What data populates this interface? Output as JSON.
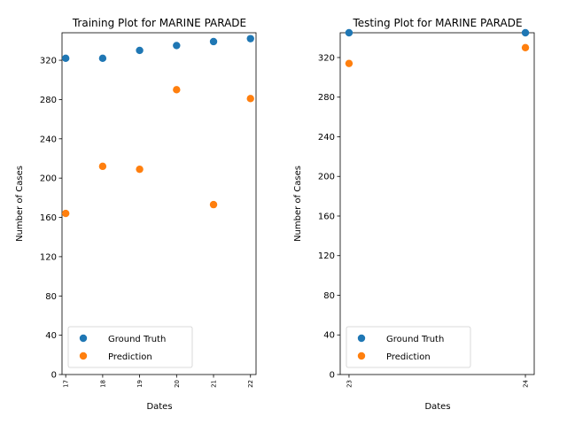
{
  "chart_data": [
    {
      "type": "scatter",
      "title": "Training Plot for MARINE PARADE",
      "xlabel": "Dates",
      "ylabel": "Number of Cases",
      "x": [
        "17",
        "18",
        "19",
        "20",
        "21",
        "22"
      ],
      "xlim": [
        16.9,
        22.15
      ],
      "ylim": [
        0,
        348
      ],
      "yticks": [
        0,
        40,
        80,
        120,
        160,
        200,
        240,
        280,
        320
      ],
      "grid": false,
      "legend": "lower-left",
      "series": [
        {
          "name": "Ground Truth",
          "color": "#1f77b4",
          "values": [
            322,
            322,
            330,
            335,
            339,
            342
          ]
        },
        {
          "name": "Prediction",
          "color": "#ff7f0e",
          "values": [
            164,
            212,
            209,
            290,
            173,
            281
          ]
        }
      ]
    },
    {
      "type": "scatter",
      "title": "Testing Plot for MARINE PARADE",
      "xlabel": "Dates",
      "ylabel": "Number of Cases",
      "x": [
        "23",
        "24"
      ],
      "xlim": [
        22.95,
        24.05
      ],
      "ylim": [
        0,
        345
      ],
      "yticks": [
        0,
        40,
        80,
        120,
        160,
        200,
        240,
        280,
        320
      ],
      "grid": false,
      "legend": "lower-left",
      "series": [
        {
          "name": "Ground Truth",
          "color": "#1f77b4",
          "values": [
            345,
            345
          ]
        },
        {
          "name": "Prediction",
          "color": "#ff7f0e",
          "values": [
            314,
            330
          ]
        }
      ]
    }
  ]
}
